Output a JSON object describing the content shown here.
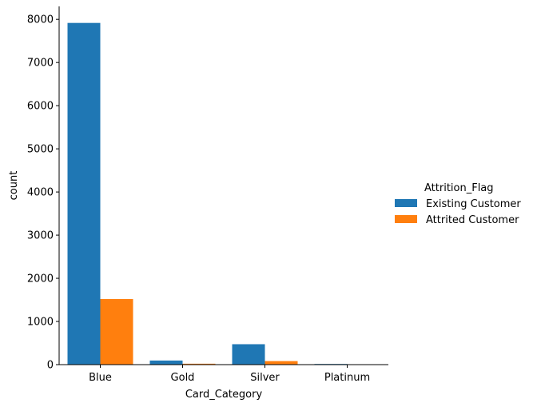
{
  "chart_data": {
    "type": "bar",
    "categories": [
      "Blue",
      "Gold",
      "Silver",
      "Platinum"
    ],
    "series": [
      {
        "name": "Existing Customer",
        "values": [
          7917,
          95,
          473,
          15
        ],
        "color": "#1f77b4"
      },
      {
        "name": "Attrited Customer",
        "values": [
          1519,
          21,
          82,
          5
        ],
        "color": "#ff7f0e"
      }
    ],
    "xlabel": "Card_Category",
    "ylabel": "count",
    "ylim": [
      0,
      8300
    ],
    "yticks": [
      0,
      1000,
      2000,
      3000,
      4000,
      5000,
      6000,
      7000,
      8000
    ],
    "grid": false,
    "legend": {
      "title": "Attrition_Flag",
      "placement": "right"
    }
  }
}
